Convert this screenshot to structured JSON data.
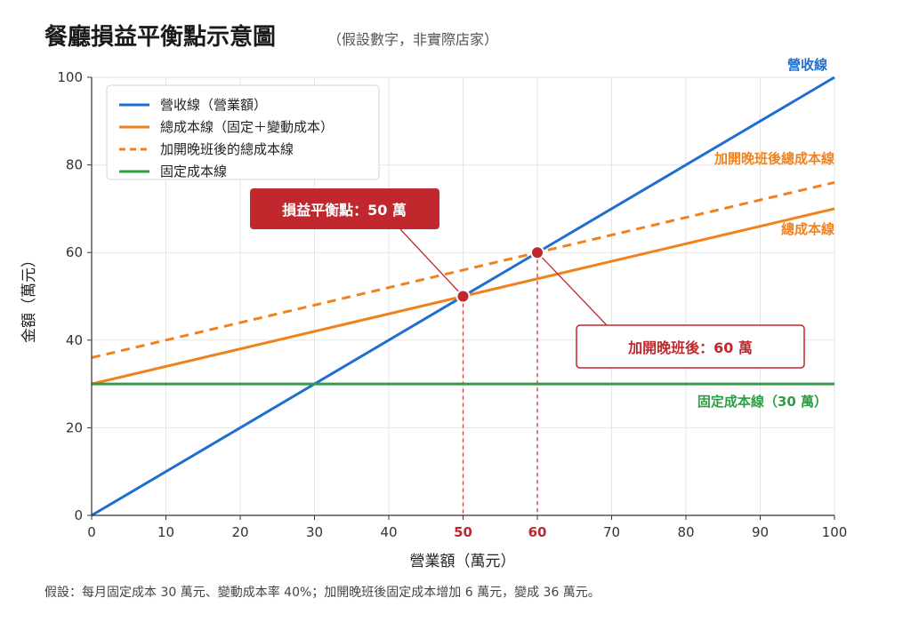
{
  "title": "餐廳損益平衡點示意圖",
  "subtitle": "（假設數字，非實際店家）",
  "footnote": "假設：每月固定成本 30 萬元、變動成本率 40%；加開晚班後固定成本增加 6 萬元，變成 36 萬元。",
  "chart_data": {
    "type": "line",
    "xlabel": "營業額（萬元）",
    "ylabel": "金額（萬元）",
    "xlim": [
      0,
      100
    ],
    "ylim": [
      0,
      100
    ],
    "x_ticks": [
      0,
      10,
      20,
      30,
      40,
      50,
      60,
      70,
      80,
      90,
      100
    ],
    "y_ticks": [
      0,
      20,
      40,
      60,
      80,
      100
    ],
    "highlighted_x_ticks": [
      50,
      60
    ],
    "grid": true,
    "legend_position": "top-left",
    "series": [
      {
        "name": "營收線（營業額）",
        "label": "營收線",
        "color": "#1f6fd1",
        "dashed": false,
        "x": [
          0,
          100
        ],
        "y": [
          0,
          100
        ]
      },
      {
        "name": "總成本線（固定＋變動成本）",
        "label": "總成本線",
        "color": "#f0821e",
        "dashed": false,
        "x": [
          0,
          100
        ],
        "y": [
          30,
          70
        ]
      },
      {
        "name": "加開晚班後的總成本線",
        "label": "加開晚班後總成本線",
        "color": "#f0821e",
        "dashed": true,
        "x": [
          0,
          100
        ],
        "y": [
          36,
          76
        ]
      },
      {
        "name": "固定成本線",
        "label": "固定成本線（30 萬）",
        "color": "#2e9e44",
        "dashed": false,
        "x": [
          0,
          100
        ],
        "y": [
          30,
          30
        ]
      }
    ],
    "points": [
      {
        "label": "損益平衡點：50 萬",
        "x": 50,
        "y": 50,
        "color": "#c0282d",
        "style": "filled"
      },
      {
        "label": "加開晚班後：60 萬",
        "x": 60,
        "y": 60,
        "color": "#c0282d",
        "style": "outlined"
      }
    ]
  }
}
